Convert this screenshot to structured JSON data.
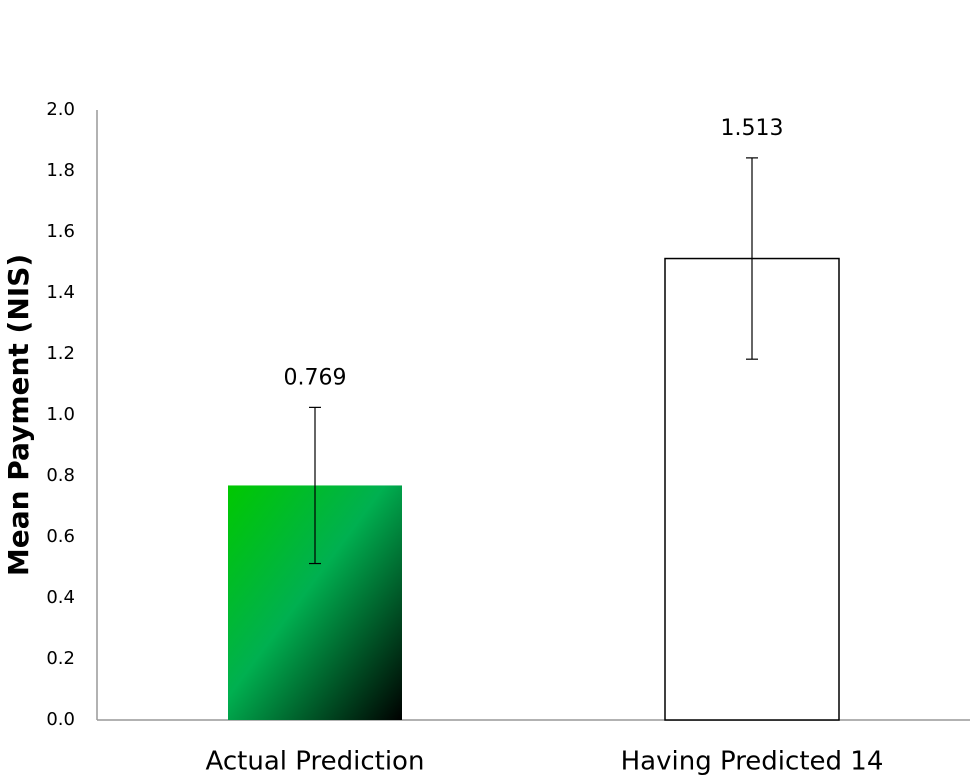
{
  "chart_data": {
    "type": "bar",
    "y_label": "Mean Payment (NIS)",
    "categories": [
      "Actual Prediction",
      "Having Predicted 14"
    ],
    "values": [
      0.769,
      1.513
    ],
    "errors": [
      0.256,
      0.33
    ],
    "colors": [
      "#00c800",
      "#ffffff"
    ],
    "ylim": [
      0,
      2.0
    ],
    "yticks": [
      {
        "value": 0,
        "label": "0.0"
      },
      {
        "value": 0.2,
        "label": "0.2"
      },
      {
        "value": 0.4,
        "label": "0.4"
      },
      {
        "value": 0.6,
        "label": "0.6"
      },
      {
        "value": 0.8,
        "label": "0.8"
      },
      {
        "value": 1.0,
        "label": "1.0"
      },
      {
        "value": 1.2,
        "label": "1.2"
      },
      {
        "value": 1.4,
        "label": "1.4"
      },
      {
        "value": 1.6,
        "label": "1.6"
      },
      {
        "value": 1.8,
        "label": "1.8"
      },
      {
        "value": 2.0,
        "label": "2.0"
      }
    ],
    "grid": false
  }
}
